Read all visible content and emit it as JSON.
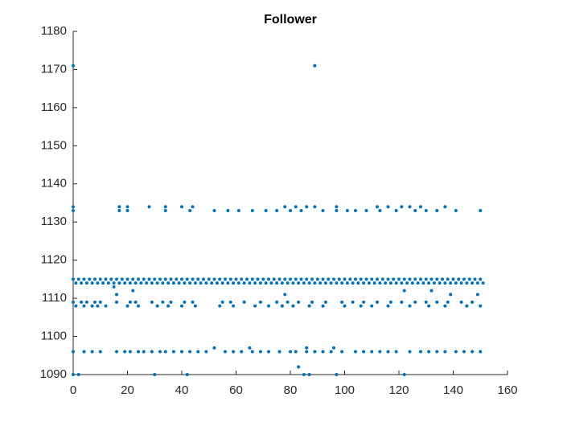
{
  "chart_data": {
    "type": "scatter",
    "title": "Follower",
    "color": "#0072bd",
    "xlim": [
      0,
      160
    ],
    "xticks": [
      0,
      20,
      40,
      60,
      80,
      100,
      120,
      140,
      160
    ],
    "ylim": [
      1090,
      1180
    ],
    "yticks": [
      1090,
      1100,
      1110,
      1120,
      1130,
      1140,
      1150,
      1160,
      1170,
      1180
    ],
    "x": [
      0,
      2,
      4,
      6,
      8,
      10,
      12,
      14,
      16,
      18,
      20,
      22,
      24,
      26,
      28,
      30,
      32,
      34,
      36,
      38,
      40,
      42,
      44,
      46,
      48,
      50,
      52,
      54,
      56,
      58,
      60,
      62,
      64,
      66,
      68,
      70,
      72,
      74,
      76,
      78,
      80,
      82,
      84,
      86,
      88,
      90,
      92,
      94,
      96,
      98,
      100,
      102,
      104,
      106,
      108,
      110,
      112,
      114,
      116,
      118,
      120,
      122,
      124,
      126,
      128,
      130,
      132,
      134,
      136,
      138,
      140,
      142,
      144,
      146,
      148,
      150,
      1,
      3,
      5,
      7,
      9,
      11,
      13,
      15,
      17,
      19,
      21,
      23,
      25,
      27,
      29,
      31,
      33,
      35,
      37,
      39,
      41,
      43,
      45,
      47,
      49,
      51,
      53,
      55,
      57,
      59,
      61,
      63,
      65,
      67,
      69,
      71,
      73,
      75,
      77,
      79,
      81,
      83,
      85,
      87,
      89,
      91,
      93,
      95,
      97,
      99,
      101,
      103,
      105,
      107,
      109,
      111,
      113,
      115,
      117,
      119,
      121,
      123,
      125,
      127,
      129,
      131,
      133,
      135,
      137,
      139,
      141,
      143,
      145,
      147,
      149,
      151,
      0,
      3,
      5,
      8,
      10,
      16,
      21,
      23,
      29,
      33,
      36,
      41,
      44,
      55,
      58,
      63,
      69,
      75,
      79,
      83,
      88,
      93,
      99,
      103,
      107,
      112,
      117,
      121,
      126,
      130,
      134,
      138,
      143,
      147,
      1,
      4,
      7,
      9,
      12,
      20,
      24,
      31,
      35,
      40,
      45,
      54,
      59,
      67,
      72,
      77,
      81,
      87,
      92,
      100,
      106,
      110,
      116,
      124,
      131,
      137,
      145,
      150,
      0,
      4,
      7,
      10,
      16,
      19,
      21,
      24,
      26,
      29,
      32,
      34,
      37,
      40,
      43,
      46,
      49,
      56,
      59,
      62,
      66,
      69,
      72,
      76,
      80,
      82,
      86,
      89,
      92,
      95,
      99,
      104,
      107,
      110,
      113,
      116,
      119,
      124,
      128,
      131,
      134,
      137,
      141,
      144,
      147,
      150,
      17,
      20,
      28,
      34,
      40,
      44,
      78,
      82,
      86,
      89,
      97,
      112,
      116,
      121,
      124,
      128,
      137,
      17,
      20,
      34,
      43,
      52,
      57,
      61,
      66,
      71,
      75,
      80,
      84,
      92,
      97,
      101,
      104,
      108,
      113,
      119,
      126,
      130,
      134,
      141,
      150,
      0,
      0,
      0,
      89,
      0,
      2,
      30,
      42,
      83,
      85,
      86,
      87,
      97,
      122,
      52,
      65,
      96,
      15,
      16,
      78,
      132,
      139,
      149,
      122,
      22
    ],
    "values": [
      1115,
      1115,
      1115,
      1115,
      1115,
      1115,
      1115,
      1115,
      1115,
      1115,
      1115,
      1115,
      1115,
      1115,
      1115,
      1115,
      1115,
      1115,
      1115,
      1115,
      1115,
      1115,
      1115,
      1115,
      1115,
      1115,
      1115,
      1115,
      1115,
      1115,
      1115,
      1115,
      1115,
      1115,
      1115,
      1115,
      1115,
      1115,
      1115,
      1115,
      1115,
      1115,
      1115,
      1115,
      1115,
      1115,
      1115,
      1115,
      1115,
      1115,
      1115,
      1115,
      1115,
      1115,
      1115,
      1115,
      1115,
      1115,
      1115,
      1115,
      1115,
      1115,
      1115,
      1115,
      1115,
      1115,
      1115,
      1115,
      1115,
      1115,
      1115,
      1115,
      1115,
      1115,
      1115,
      1115,
      1114,
      1114,
      1114,
      1114,
      1114,
      1114,
      1114,
      1114,
      1114,
      1114,
      1114,
      1114,
      1114,
      1114,
      1114,
      1114,
      1114,
      1114,
      1114,
      1114,
      1114,
      1114,
      1114,
      1114,
      1114,
      1114,
      1114,
      1114,
      1114,
      1114,
      1114,
      1114,
      1114,
      1114,
      1114,
      1114,
      1114,
      1114,
      1114,
      1114,
      1114,
      1114,
      1114,
      1114,
      1114,
      1114,
      1114,
      1114,
      1114,
      1114,
      1114,
      1114,
      1114,
      1114,
      1114,
      1114,
      1114,
      1114,
      1114,
      1114,
      1114,
      1114,
      1114,
      1114,
      1114,
      1114,
      1114,
      1114,
      1114,
      1114,
      1114,
      1114,
      1114,
      1114,
      1114,
      1114,
      1109,
      1109,
      1109,
      1109,
      1109,
      1109,
      1109,
      1109,
      1109,
      1109,
      1109,
      1109,
      1109,
      1109,
      1109,
      1109,
      1109,
      1109,
      1109,
      1109,
      1109,
      1109,
      1109,
      1109,
      1109,
      1109,
      1109,
      1109,
      1109,
      1109,
      1109,
      1109,
      1109,
      1109,
      1108,
      1108,
      1108,
      1108,
      1108,
      1108,
      1108,
      1108,
      1108,
      1108,
      1108,
      1108,
      1108,
      1108,
      1108,
      1108,
      1108,
      1108,
      1108,
      1108,
      1108,
      1108,
      1108,
      1108,
      1108,
      1108,
      1108,
      1108,
      1096,
      1096,
      1096,
      1096,
      1096,
      1096,
      1096,
      1096,
      1096,
      1096,
      1096,
      1096,
      1096,
      1096,
      1096,
      1096,
      1096,
      1096,
      1096,
      1096,
      1096,
      1096,
      1096,
      1096,
      1096,
      1096,
      1096,
      1096,
      1096,
      1096,
      1096,
      1096,
      1096,
      1096,
      1096,
      1096,
      1096,
      1096,
      1096,
      1096,
      1096,
      1096,
      1096,
      1096,
      1096,
      1096,
      1134,
      1134,
      1134,
      1134,
      1134,
      1134,
      1134,
      1134,
      1134,
      1134,
      1134,
      1134,
      1134,
      1134,
      1134,
      1134,
      1134,
      1133,
      1133,
      1133,
      1133,
      1133,
      1133,
      1133,
      1133,
      1133,
      1133,
      1133,
      1133,
      1133,
      1133,
      1133,
      1133,
      1133,
      1133,
      1133,
      1133,
      1133,
      1133,
      1133,
      1133,
      1171,
      1134,
      1133,
      1171,
      1090,
      1090,
      1090,
      1090,
      1092,
      1090,
      1097,
      1090,
      1090,
      1090,
      1097,
      1097,
      1097,
      1113,
      1111,
      1111,
      1112,
      1111,
      1111,
      1112,
      1112
    ]
  }
}
